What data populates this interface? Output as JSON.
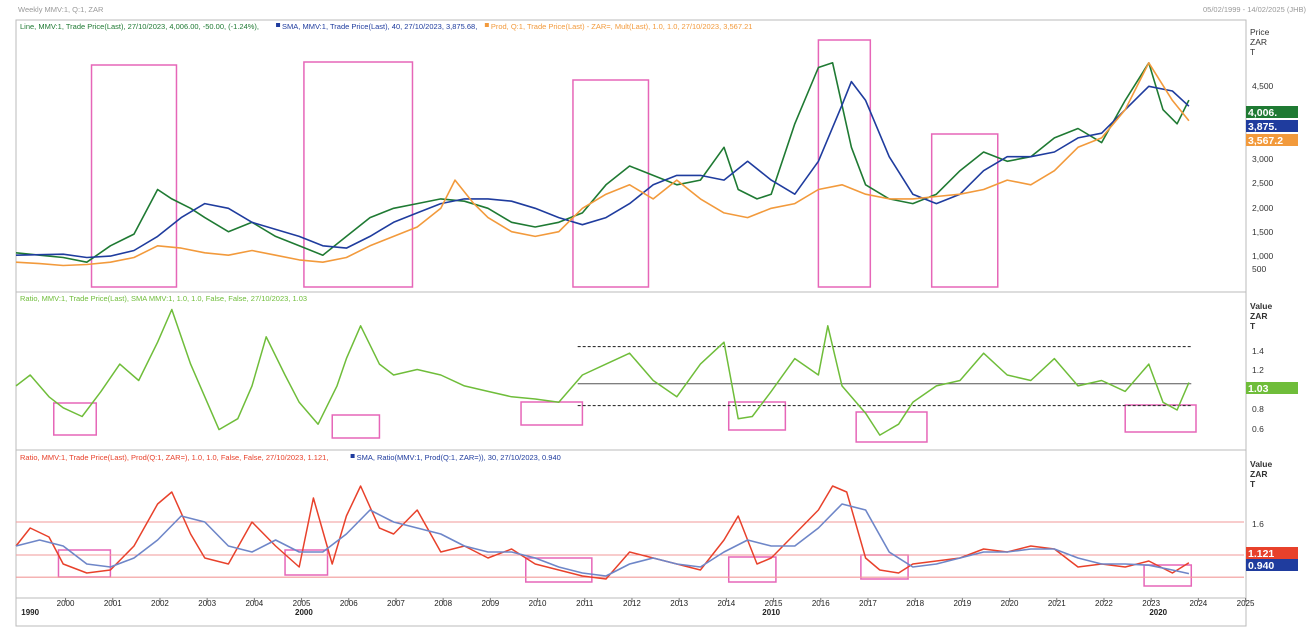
{
  "window_title": "Weekly MMV:1, Q:1, ZAR",
  "date_range": "05/02/1999 - 14/02/2025 (JHB)",
  "colors": {
    "price_line": "#1f7a33",
    "sma_price": "#1f3c9e",
    "prod_ratio": "#f29a3c",
    "ratio_green": "#6fbd3a",
    "ratio_red": "#e8412b",
    "sma_ratio": "#6e86c8",
    "highlight_box": "#e666b8",
    "hline_red": "#f29a9a"
  },
  "chart_data": [
    {
      "type": "line",
      "panel": "top",
      "legend": [
        {
          "text": "Line, MMV:1, Trade Price(Last), 27/10/2023, 4,006.00, -50.00, (-1.24%),",
          "color": "#1f7a33"
        },
        {
          "text": "SMA, MMV:1, Trade Price(Last), 40, 27/10/2023, 3,875.68,",
          "color": "#1f3c9e"
        },
        {
          "text": "Prod, Q:1, Trade Price(Last) - ZAR=, Mult(Last), 1.0, 1.0, 27/10/2023, 3,567.21",
          "color": "#f29a3c"
        }
      ],
      "y_unit_label": [
        "Price",
        "ZAR",
        "T"
      ],
      "ylim": [
        0,
        5500
      ],
      "yticks": [
        "500",
        "1,000",
        "1,500",
        "2,000",
        "2,500",
        "3,000",
        "4,500"
      ],
      "last_value_badges": [
        {
          "text": "4,006.",
          "color": "#1f7a33"
        },
        {
          "text": "3,875.",
          "color": "#1f3c9e"
        },
        {
          "text": "3,567.2",
          "color": "#f29a3c"
        }
      ],
      "series": [
        {
          "name": "Line MMV:1",
          "color": "#1f7a33",
          "x": [
            1999.0,
            1999.5,
            2000.0,
            2000.5,
            2001.0,
            2001.5,
            2002.0,
            2002.3,
            2002.7,
            2003.0,
            2003.5,
            2004.0,
            2004.5,
            2005.0,
            2005.5,
            2006.0,
            2006.5,
            2007.0,
            2007.5,
            2008.0,
            2008.5,
            2009.0,
            2009.5,
            2010.0,
            2010.5,
            2011.0,
            2011.5,
            2012.0,
            2012.5,
            2013.0,
            2013.5,
            2014.0,
            2014.3,
            2014.7,
            2015.0,
            2015.5,
            2016.0,
            2016.3,
            2016.7,
            2017.0,
            2017.5,
            2018.0,
            2018.5,
            2019.0,
            2019.5,
            2020.0,
            2020.5,
            2021.0,
            2021.5,
            2022.0,
            2022.5,
            2023.0,
            2023.3,
            2023.6,
            2023.85
          ],
          "y": [
            750,
            700,
            650,
            550,
            900,
            1150,
            2100,
            1900,
            1700,
            1500,
            1200,
            1400,
            1100,
            900,
            700,
            1100,
            1500,
            1700,
            1800,
            1900,
            1850,
            1700,
            1400,
            1300,
            1400,
            1600,
            2200,
            2600,
            2400,
            2200,
            2300,
            3000,
            2100,
            1900,
            2000,
            3500,
            4700,
            4800,
            3000,
            2200,
            1900,
            1800,
            2000,
            2500,
            2900,
            2700,
            2800,
            3200,
            3400,
            3100,
            4000,
            4800,
            3800,
            3500,
            4006
          ]
        },
        {
          "name": "SMA MMV:1",
          "color": "#1f3c9e",
          "x": [
            1999.0,
            2000.0,
            2000.5,
            2001.0,
            2001.5,
            2002.0,
            2002.5,
            2003.0,
            2003.5,
            2004.0,
            2004.5,
            2005.0,
            2005.5,
            2006.0,
            2006.5,
            2007.0,
            2007.5,
            2008.0,
            2008.5,
            2009.0,
            2009.5,
            2010.0,
            2010.5,
            2011.0,
            2011.5,
            2012.0,
            2012.5,
            2013.0,
            2013.5,
            2014.0,
            2014.5,
            2015.0,
            2015.5,
            2016.0,
            2016.5,
            2016.7,
            2017.0,
            2017.5,
            2018.0,
            2018.5,
            2019.0,
            2019.5,
            2020.0,
            2020.5,
            2021.0,
            2021.5,
            2022.0,
            2022.5,
            2023.0,
            2023.5,
            2023.85
          ],
          "y": [
            700,
            720,
            650,
            680,
            800,
            1100,
            1500,
            1800,
            1700,
            1400,
            1250,
            1100,
            900,
            850,
            1100,
            1400,
            1600,
            1800,
            1900,
            1900,
            1850,
            1700,
            1500,
            1350,
            1500,
            1800,
            2200,
            2400,
            2400,
            2300,
            2700,
            2300,
            2000,
            2700,
            3900,
            4400,
            4000,
            2800,
            2000,
            1800,
            2000,
            2500,
            2800,
            2800,
            2900,
            3200,
            3300,
            3800,
            4300,
            4200,
            3876
          ]
        },
        {
          "name": "Prod Q:1",
          "color": "#f29a3c",
          "x": [
            1999.0,
            1999.5,
            2000.0,
            2000.5,
            2001.0,
            2001.5,
            2002.0,
            2002.5,
            2003.0,
            2003.5,
            2004.0,
            2004.5,
            2005.0,
            2005.5,
            2006.0,
            2006.5,
            2007.0,
            2007.5,
            2008.0,
            2008.3,
            2008.7,
            2009.0,
            2009.5,
            2010.0,
            2010.5,
            2011.0,
            2011.5,
            2012.0,
            2012.5,
            2013.0,
            2013.5,
            2014.0,
            2014.5,
            2015.0,
            2015.5,
            2016.0,
            2016.5,
            2017.0,
            2017.5,
            2018.0,
            2018.5,
            2019.0,
            2019.5,
            2020.0,
            2020.5,
            2021.0,
            2021.5,
            2022.0,
            2022.5,
            2023.0,
            2023.5,
            2023.85
          ],
          "y": [
            550,
            520,
            480,
            500,
            550,
            650,
            900,
            850,
            750,
            700,
            800,
            700,
            600,
            550,
            650,
            900,
            1100,
            1300,
            1700,
            2300,
            1800,
            1500,
            1200,
            1100,
            1200,
            1700,
            2000,
            2200,
            1900,
            2300,
            1900,
            1600,
            1500,
            1700,
            1800,
            2100,
            2200,
            2000,
            1900,
            1900,
            1950,
            2000,
            2100,
            2300,
            2200,
            2500,
            3000,
            3200,
            3800,
            4800,
            4000,
            3567
          ]
        }
      ]
    },
    {
      "type": "line",
      "panel": "middle",
      "legend": [
        {
          "text": "Ratio, MMV:1, Trade Price(Last), SMA MMV:1, 1.0, 1.0, False, False, 27/10/2023, 1.03",
          "color": "#6fbd3a"
        }
      ],
      "y_unit_label": [
        "Value",
        "ZAR",
        "T"
      ],
      "ylim": [
        0.45,
        1.75
      ],
      "yticks": [
        "0.6",
        "0.8",
        "1",
        "1.2",
        "1.4"
      ],
      "last_value_badges": [
        {
          "text": "1.03",
          "color": "#6fbd3a"
        }
      ],
      "series": [
        {
          "name": "Ratio",
          "color": "#6fbd3a",
          "x": [
            1999.0,
            1999.3,
            1999.7,
            2000.0,
            2000.4,
            2000.8,
            2001.2,
            2001.6,
            2002.0,
            2002.3,
            2002.7,
            2003.0,
            2003.3,
            2003.7,
            2004.0,
            2004.3,
            2004.7,
            2005.0,
            2005.4,
            2005.8,
            2006.0,
            2006.3,
            2006.7,
            2007.0,
            2007.5,
            2008.0,
            2008.5,
            2009.0,
            2009.5,
            2010.0,
            2010.5,
            2011.0,
            2011.5,
            2012.0,
            2012.5,
            2013.0,
            2013.5,
            2014.0,
            2014.3,
            2014.6,
            2015.0,
            2015.5,
            2016.0,
            2016.2,
            2016.5,
            2017.0,
            2017.3,
            2017.7,
            2018.0,
            2018.5,
            2019.0,
            2019.5,
            2020.0,
            2020.5,
            2021.0,
            2021.5,
            2022.0,
            2022.5,
            2023.0,
            2023.3,
            2023.6,
            2023.85
          ],
          "y": [
            1.0,
            1.1,
            0.9,
            0.8,
            0.72,
            0.95,
            1.2,
            1.05,
            1.4,
            1.7,
            1.2,
            0.9,
            0.6,
            0.7,
            1.0,
            1.45,
            1.1,
            0.85,
            0.65,
            1.0,
            1.25,
            1.55,
            1.2,
            1.1,
            1.15,
            1.1,
            1.0,
            0.95,
            0.9,
            0.88,
            0.85,
            1.1,
            1.2,
            1.3,
            1.05,
            0.9,
            1.2,
            1.4,
            0.7,
            0.72,
            0.95,
            1.25,
            1.1,
            1.55,
            1.0,
            0.75,
            0.55,
            0.65,
            0.85,
            1.0,
            1.05,
            1.3,
            1.1,
            1.05,
            1.25,
            1.0,
            1.05,
            0.95,
            1.2,
            0.85,
            0.78,
            1.03
          ]
        }
      ],
      "reference_lines": [
        {
          "style": "dashed",
          "y": 1.36
        },
        {
          "style": "solid",
          "y": 1.02
        },
        {
          "style": "dashed",
          "y": 0.82
        }
      ]
    },
    {
      "type": "line",
      "panel": "bottom",
      "legend": [
        {
          "text": "Ratio, MMV:1, Trade Price(Last), Prod(Q:1, ZAR=), 1.0, 1.0, False, False, 27/10/2023, 1.121,",
          "color": "#e8412b"
        },
        {
          "text": "SMA, Ratio(MMV:1, Prod(Q:1, ZAR=)), 30, 27/10/2023, 0.940",
          "color": "#1f3c9e"
        }
      ],
      "y_unit_label": [
        "Value",
        "ZAR",
        "T"
      ],
      "ylim": [
        0.6,
        2.8
      ],
      "yticks": [
        "1.6"
      ],
      "last_value_badges": [
        {
          "text": "1.121",
          "color": "#e8412b"
        },
        {
          "text": "0.940",
          "color": "#1f3c9e"
        }
      ],
      "series": [
        {
          "name": "Ratio",
          "color": "#e8412b",
          "x": [
            1999.0,
            1999.3,
            1999.7,
            2000.0,
            2000.5,
            2001.0,
            2001.5,
            2002.0,
            2002.3,
            2002.7,
            2003.0,
            2003.5,
            2004.0,
            2004.5,
            2005.0,
            2005.3,
            2005.7,
            2006.0,
            2006.3,
            2006.7,
            2007.0,
            2007.5,
            2008.0,
            2008.5,
            2009.0,
            2009.5,
            2010.0,
            2010.5,
            2011.0,
            2011.5,
            2012.0,
            2012.5,
            2013.0,
            2013.5,
            2014.0,
            2014.3,
            2014.7,
            2015.0,
            2015.5,
            2016.0,
            2016.3,
            2016.6,
            2017.0,
            2017.3,
            2017.7,
            2018.0,
            2018.5,
            2019.0,
            2019.5,
            2020.0,
            2020.5,
            2021.0,
            2021.5,
            2022.0,
            2022.5,
            2023.0,
            2023.5,
            2023.85
          ],
          "y": [
            1.4,
            1.7,
            1.55,
            1.1,
            0.95,
            1.0,
            1.4,
            2.1,
            2.3,
            1.6,
            1.2,
            1.1,
            1.8,
            1.4,
            1.05,
            2.2,
            1.1,
            1.9,
            2.4,
            1.7,
            1.6,
            2.0,
            1.3,
            1.4,
            1.2,
            1.35,
            1.1,
            1.0,
            0.9,
            0.85,
            1.3,
            1.2,
            1.1,
            1.0,
            1.5,
            1.9,
            1.1,
            1.2,
            1.6,
            2.0,
            2.4,
            2.3,
            1.2,
            1.0,
            0.95,
            1.1,
            1.15,
            1.2,
            1.35,
            1.3,
            1.4,
            1.35,
            1.05,
            1.1,
            1.05,
            1.15,
            0.95,
            1.121
          ]
        },
        {
          "name": "SMA Ratio",
          "color": "#6e86c8",
          "x": [
            1999.0,
            1999.5,
            2000.0,
            2000.5,
            2001.0,
            2001.5,
            2002.0,
            2002.5,
            2003.0,
            2003.5,
            2004.0,
            2004.5,
            2005.0,
            2005.5,
            2006.0,
            2006.5,
            2007.0,
            2007.5,
            2008.0,
            2008.5,
            2009.0,
            2009.5,
            2010.0,
            2010.5,
            2011.0,
            2011.5,
            2012.0,
            2012.5,
            2013.0,
            2013.5,
            2014.0,
            2014.5,
            2015.0,
            2015.5,
            2016.0,
            2016.5,
            2017.0,
            2017.5,
            2018.0,
            2018.5,
            2019.0,
            2019.5,
            2020.0,
            2020.5,
            2021.0,
            2021.5,
            2022.0,
            2022.5,
            2023.0,
            2023.5,
            2023.85
          ],
          "y": [
            1.4,
            1.5,
            1.4,
            1.1,
            1.05,
            1.2,
            1.5,
            1.9,
            1.8,
            1.4,
            1.3,
            1.5,
            1.3,
            1.3,
            1.6,
            2.0,
            1.8,
            1.7,
            1.6,
            1.4,
            1.3,
            1.3,
            1.2,
            1.05,
            0.95,
            0.9,
            1.1,
            1.2,
            1.1,
            1.05,
            1.3,
            1.5,
            1.4,
            1.4,
            1.7,
            2.1,
            2.0,
            1.3,
            1.05,
            1.1,
            1.2,
            1.3,
            1.3,
            1.35,
            1.35,
            1.2,
            1.1,
            1.1,
            1.08,
            1.0,
            0.94
          ]
        }
      ],
      "reference_lines": [
        {
          "style": "solid",
          "y": 1.8
        },
        {
          "style": "solid",
          "y": 1.25
        },
        {
          "style": "solid",
          "y": 0.88
        }
      ]
    }
  ],
  "x_axis": {
    "year_ticks": [
      "2000",
      "2001",
      "2002",
      "2003",
      "2004",
      "2005",
      "2006",
      "2007",
      "2008",
      "2009",
      "2010",
      "2011",
      "2012",
      "2013",
      "2014",
      "2015",
      "2016",
      "2017",
      "2018",
      "2019",
      "2020",
      "2021",
      "2022",
      "2023",
      "2024",
      "2025"
    ],
    "decade_labels": [
      "1990",
      "2000",
      "2010",
      "2020"
    ]
  },
  "highlight_boxes": {
    "top": [
      [
        2000.6,
        2002.4
      ],
      [
        2005.1,
        2007.4
      ],
      [
        2010.8,
        2012.4
      ],
      [
        2016.0,
        2017.1
      ],
      [
        2018.4,
        2019.8
      ]
    ],
    "middle": [
      [
        1999.8,
        2000.7
      ],
      [
        2005.7,
        2006.7
      ],
      [
        2009.7,
        2011.0
      ],
      [
        2014.1,
        2015.3
      ],
      [
        2016.8,
        2018.3
      ],
      [
        2022.5,
        2024.0
      ]
    ],
    "bottom": [
      [
        1999.9,
        2001.0
      ],
      [
        2004.7,
        2005.6
      ],
      [
        2009.8,
        2011.2
      ],
      [
        2014.1,
        2015.1
      ],
      [
        2016.9,
        2017.9
      ],
      [
        2022.9,
        2023.9
      ]
    ]
  }
}
